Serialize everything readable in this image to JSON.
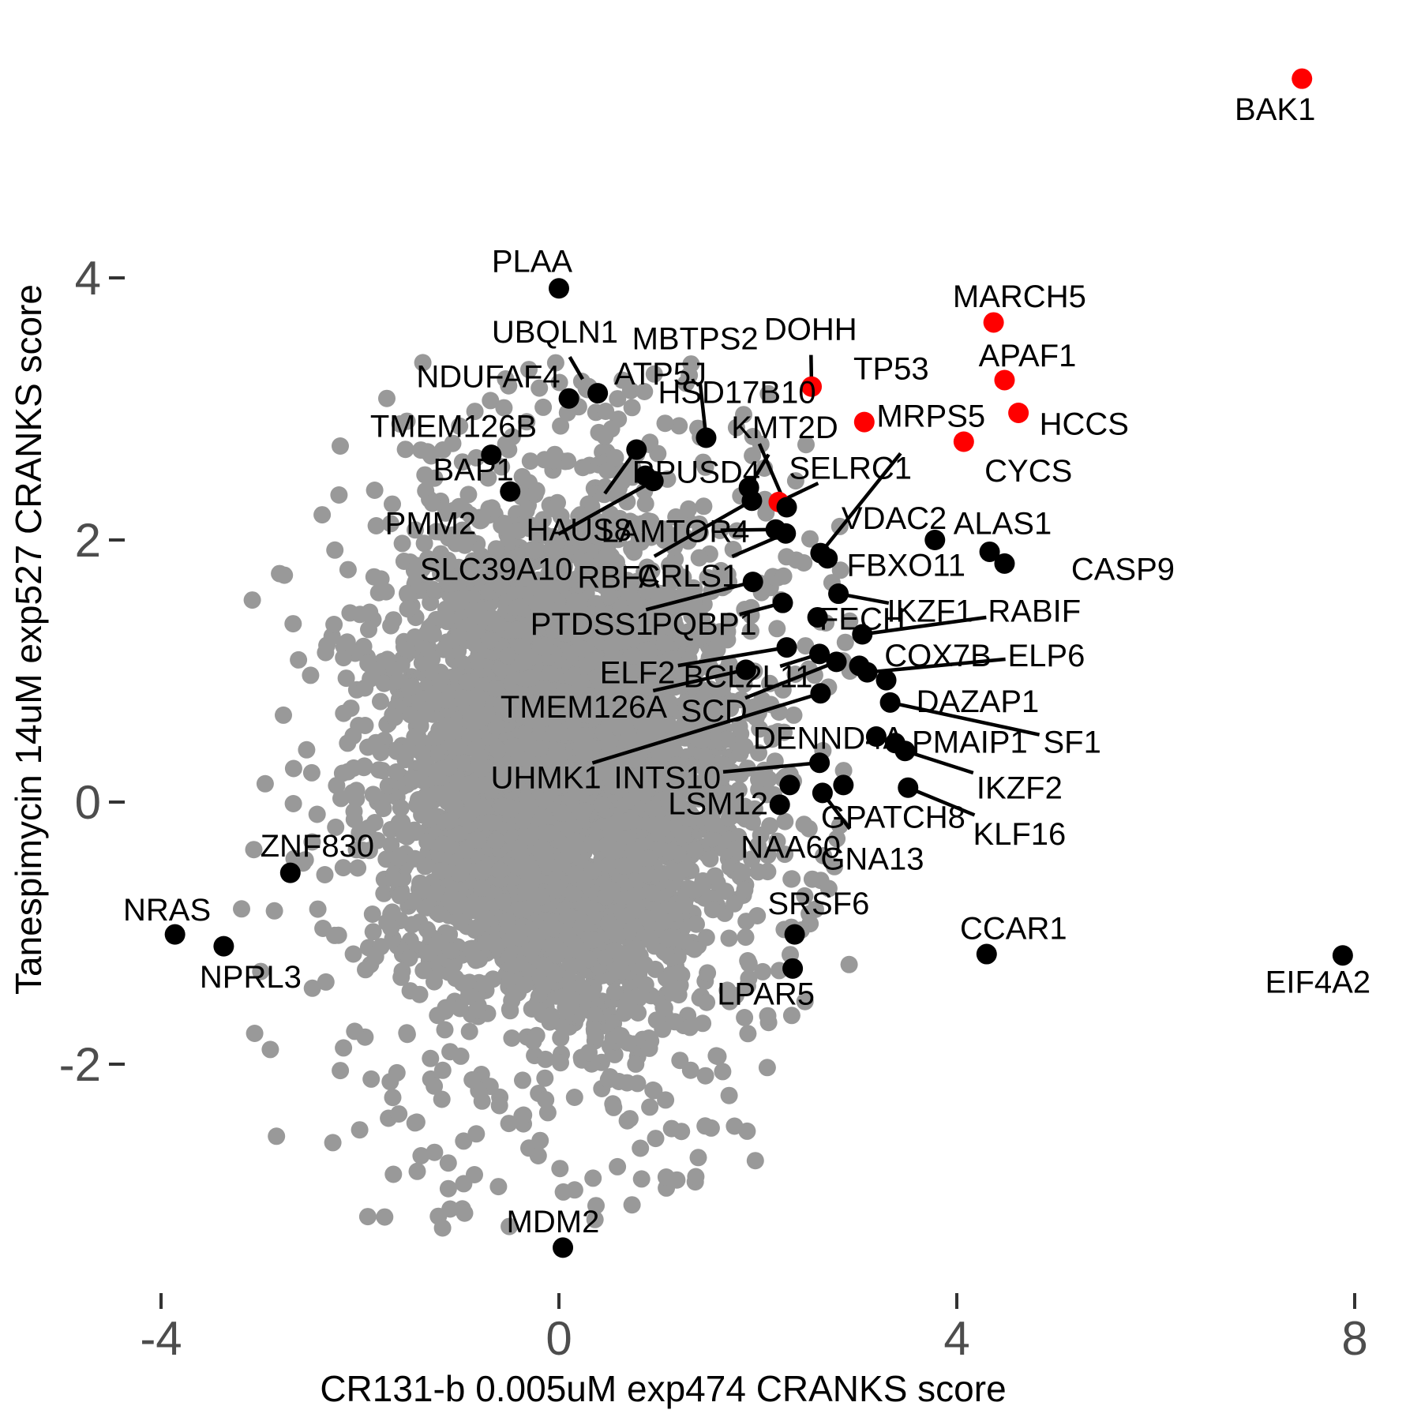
{
  "chart_data": {
    "type": "scatter",
    "title": "",
    "xlabel": "CR131-b 0.005uM exp474 CRANKS score",
    "ylabel": "Tanespimycin 14uM exp527 CRANKS score",
    "x_ticks": [
      -4,
      0,
      4,
      8
    ],
    "y_ticks": [
      -2,
      0,
      2,
      4
    ],
    "xlim": [
      -4.4,
      8.7
    ],
    "ylim": [
      -3.9,
      5.8
    ],
    "grid": "off",
    "legend": "none",
    "colors": {
      "background_point": "#999999",
      "labeled_point": "#000000",
      "highlight_point": "#ff0000",
      "axis_text": "#4d4d4d",
      "axis_tick": "#333333"
    },
    "background_cloud": {
      "seed": 1337,
      "core": {
        "count": 3400,
        "cx": 0.05,
        "cy": 0.35,
        "sdx": 0.85,
        "sdy": 0.95
      },
      "halo": {
        "count": 950,
        "cx": 0.0,
        "cy": 0.1,
        "sdx": 1.3,
        "sdy": 1.5
      },
      "bounds": {
        "xmin": -3.2,
        "xmax": 3.05,
        "ymin": -3.3,
        "ymax": 3.5
      },
      "extra_points": [
        [
          -2.86,
          -0.83
        ],
        [
          -1.17,
          -3.25
        ],
        [
          -2.84,
          -2.55
        ]
      ]
    },
    "labeled_points": [
      {
        "gene": "BAK1",
        "x": 7.47,
        "y": 5.52,
        "color": "red",
        "lx": 7.2,
        "ly": 5.29,
        "leader": false
      },
      {
        "gene": "MARCH5",
        "x": 4.37,
        "y": 3.66,
        "color": "red",
        "lx": 4.63,
        "ly": 3.86,
        "leader": false
      },
      {
        "gene": "APAF1",
        "x": 4.48,
        "y": 3.22,
        "color": "red",
        "lx": 4.71,
        "ly": 3.41,
        "leader": false
      },
      {
        "gene": "HCCS",
        "x": 4.62,
        "y": 2.97,
        "color": "red",
        "lx": 5.28,
        "ly": 2.89,
        "leader": false
      },
      {
        "gene": "DOHH",
        "x": 2.54,
        "y": 3.17,
        "color": "red",
        "lx": 2.53,
        "ly": 3.61,
        "leader": true
      },
      {
        "gene": "TP53",
        "x": 3.07,
        "y": 2.9,
        "color": "red",
        "lx": 3.34,
        "ly": 3.31,
        "leader": false
      },
      {
        "gene": "CYCS",
        "x": 4.07,
        "y": 2.75,
        "color": "red",
        "lx": 4.72,
        "ly": 2.53,
        "leader": false
      },
      {
        "gene": "SELRC1",
        "x": 2.21,
        "y": 2.29,
        "color": "red",
        "lx": 2.93,
        "ly": 2.55,
        "leader": true
      },
      {
        "gene": "PLAA",
        "x": 0.0,
        "y": 3.92,
        "color": "black",
        "lx": -0.27,
        "ly": 4.13,
        "leader": false
      },
      {
        "gene": "UBQLN1",
        "x": 0.29,
        "y": 3.16,
        "color": "gray",
        "lx": -0.04,
        "ly": 3.59,
        "leader": true
      },
      {
        "gene": "MBTPS2",
        "x": 1.48,
        "y": 2.78,
        "color": "black",
        "lx": 1.37,
        "ly": 3.54,
        "leader": true
      },
      {
        "gene": "NDUFAF4",
        "x": 0.1,
        "y": 3.08,
        "color": "black",
        "lx": -0.71,
        "ly": 3.25,
        "leader": false
      },
      {
        "gene": "ATP5J",
        "x": 0.39,
        "y": 3.12,
        "color": "black",
        "lx": 1.02,
        "ly": 3.27,
        "leader": false
      },
      {
        "gene": "HSD17B10",
        "x": 2.29,
        "y": 2.25,
        "color": "black",
        "lx": 1.79,
        "ly": 3.13,
        "leader": true
      },
      {
        "gene": "KMT2D",
        "x": 1.91,
        "y": 2.4,
        "color": "black",
        "lx": 2.27,
        "ly": 2.86,
        "leader": true
      },
      {
        "gene": "TMEM126B",
        "x": -0.68,
        "y": 2.65,
        "color": "black",
        "lx": -1.06,
        "ly": 2.87,
        "leader": false
      },
      {
        "gene": "BAP1",
        "x": -0.49,
        "y": 2.37,
        "color": "black",
        "lx": -0.86,
        "ly": 2.54,
        "leader": false
      },
      {
        "gene": "PMM2",
        "x": -0.79,
        "y": 2.16,
        "color": "gray",
        "lx": -1.29,
        "ly": 2.13,
        "leader": false
      },
      {
        "gene": "HAUS8",
        "x": 0.78,
        "y": 2.69,
        "color": "black",
        "lx": 0.2,
        "ly": 2.08,
        "leader": true
      },
      {
        "gene": "SLC39A10",
        "x": 0.95,
        "y": 2.45,
        "color": "black",
        "lx": -0.63,
        "ly": 1.78,
        "leader": true
      },
      {
        "gene": "RPUSD4",
        "x": 0.87,
        "y": 2.49,
        "color": "black",
        "lx": 1.38,
        "ly": 2.52,
        "leader": false
      },
      {
        "gene": "LAMTOR4",
        "x": 2.18,
        "y": 2.08,
        "color": "black",
        "lx": 1.17,
        "ly": 2.07,
        "leader": true
      },
      {
        "gene": "RBFA",
        "x": 1.94,
        "y": 2.3,
        "color": "black",
        "lx": 0.6,
        "ly": 1.72,
        "leader": true
      },
      {
        "gene": "CRLS1",
        "x": 2.28,
        "y": 2.05,
        "color": "black",
        "lx": 1.3,
        "ly": 1.73,
        "leader": true
      },
      {
        "gene": "MRPS5",
        "x": 2.63,
        "y": 1.9,
        "color": "black",
        "lx": 3.74,
        "ly": 2.95,
        "leader": true
      },
      {
        "gene": "VDAC2",
        "x": 3.78,
        "y": 2.0,
        "color": "black",
        "lx": 3.37,
        "ly": 2.17,
        "leader": false
      },
      {
        "gene": "FBXO11",
        "x": 2.7,
        "y": 1.86,
        "color": "black",
        "lx": 3.49,
        "ly": 1.81,
        "leader": false
      },
      {
        "gene": "ALAS1",
        "x": 4.33,
        "y": 1.91,
        "color": "black",
        "lx": 4.46,
        "ly": 2.13,
        "leader": false
      },
      {
        "gene": "CASP9",
        "x": 4.48,
        "y": 1.82,
        "color": "black",
        "lx": 5.67,
        "ly": 1.78,
        "leader": false
      },
      {
        "gene": "PTDSS1",
        "x": 1.95,
        "y": 1.68,
        "color": "black",
        "lx": 0.33,
        "ly": 1.36,
        "leader": true
      },
      {
        "gene": "PQBP1",
        "x": 2.25,
        "y": 1.52,
        "color": "black",
        "lx": 1.46,
        "ly": 1.36,
        "leader": true
      },
      {
        "gene": "FECH",
        "x": 2.6,
        "y": 1.41,
        "color": "black",
        "lx": 3.05,
        "ly": 1.4,
        "leader": false
      },
      {
        "gene": "IKZF1",
        "x": 2.81,
        "y": 1.59,
        "color": "black",
        "lx": 3.73,
        "ly": 1.46,
        "leader": true
      },
      {
        "gene": "RABIF",
        "x": 3.05,
        "y": 1.28,
        "color": "black",
        "lx": 4.78,
        "ly": 1.46,
        "leader": true
      },
      {
        "gene": "COX7B",
        "x": 3.02,
        "y": 1.04,
        "color": "black",
        "lx": 3.81,
        "ly": 1.12,
        "leader": false
      },
      {
        "gene": "ELP6",
        "x": 3.1,
        "y": 0.99,
        "color": "black",
        "lx": 4.9,
        "ly": 1.12,
        "leader": true
      },
      {
        "gene": "ELF2",
        "x": 2.29,
        "y": 1.18,
        "color": "black",
        "lx": 0.79,
        "ly": 0.99,
        "leader": true
      },
      {
        "gene": "BCL2L11",
        "x": 2.62,
        "y": 1.13,
        "color": "black",
        "lx": 1.9,
        "ly": 0.96,
        "leader": true
      },
      {
        "gene": "TMEM126A",
        "x": 1.88,
        "y": 1.01,
        "color": "black",
        "lx": 0.25,
        "ly": 0.73,
        "leader": true
      },
      {
        "gene": "SCD",
        "x": 2.79,
        "y": 1.07,
        "color": "black",
        "lx": 1.56,
        "ly": 0.7,
        "leader": true
      },
      {
        "gene": "DAZAP1",
        "x": 3.29,
        "y": 0.93,
        "color": "black",
        "lx": 4.21,
        "ly": 0.77,
        "leader": false
      },
      {
        "gene": "DENND4A",
        "x": 3.19,
        "y": 0.5,
        "color": "black",
        "lx": 2.71,
        "ly": 0.49,
        "leader": false
      },
      {
        "gene": "PMAIP1",
        "x": 3.38,
        "y": 0.45,
        "color": "black",
        "lx": 4.13,
        "ly": 0.46,
        "leader": false
      },
      {
        "gene": "SF1",
        "x": 3.33,
        "y": 0.76,
        "color": "black",
        "lx": 5.16,
        "ly": 0.46,
        "leader": true
      },
      {
        "gene": "UHMK1",
        "x": 2.63,
        "y": 0.83,
        "color": "black",
        "lx": -0.13,
        "ly": 0.19,
        "leader": true
      },
      {
        "gene": "INTS10",
        "x": 2.62,
        "y": 0.3,
        "color": "black",
        "lx": 1.09,
        "ly": 0.19,
        "leader": true
      },
      {
        "gene": "IKZF2",
        "x": 3.48,
        "y": 0.39,
        "color": "black",
        "lx": 4.63,
        "ly": 0.11,
        "leader": true
      },
      {
        "gene": "LSM12",
        "x": 2.22,
        "y": -0.02,
        "color": "black",
        "lx": 1.6,
        "ly": -0.01,
        "leader": false
      },
      {
        "gene": "GPATCH8",
        "x": 2.86,
        "y": 0.13,
        "color": "black",
        "lx": 3.36,
        "ly": -0.11,
        "leader": false
      },
      {
        "gene": "KLF16",
        "x": 3.51,
        "y": 0.11,
        "color": "black",
        "lx": 4.63,
        "ly": -0.24,
        "leader": true
      },
      {
        "gene": "NAA60",
        "x": 2.32,
        "y": 0.13,
        "color": "black",
        "lx": 2.33,
        "ly": -0.34,
        "leader": false
      },
      {
        "gene": "GNA13",
        "x": 2.65,
        "y": 0.07,
        "color": "black",
        "lx": 3.15,
        "ly": -0.43,
        "leader": true
      },
      {
        "gene": "ZNF830",
        "x": -2.7,
        "y": -0.54,
        "color": "black",
        "lx": -2.43,
        "ly": -0.33,
        "leader": false
      },
      {
        "gene": "NRAS",
        "x": -3.86,
        "y": -1.01,
        "color": "black",
        "lx": -3.94,
        "ly": -0.82,
        "leader": false
      },
      {
        "gene": "NPRL3",
        "x": -3.37,
        "y": -1.1,
        "color": "black",
        "lx": -3.1,
        "ly": -1.33,
        "leader": false
      },
      {
        "gene": "SRSF6",
        "x": 2.37,
        "y": -1.01,
        "color": "black",
        "lx": 2.61,
        "ly": -0.77,
        "leader": false
      },
      {
        "gene": "CCAR1",
        "x": 4.3,
        "y": -1.16,
        "color": "black",
        "lx": 4.57,
        "ly": -0.96,
        "leader": false
      },
      {
        "gene": "LPAR5",
        "x": 2.35,
        "y": -1.27,
        "color": "black",
        "lx": 2.08,
        "ly": -1.46,
        "leader": false
      },
      {
        "gene": "EIF4A2",
        "x": 7.88,
        "y": -1.17,
        "color": "black",
        "lx": 7.63,
        "ly": -1.37,
        "leader": false
      },
      {
        "gene": "MDM2",
        "x": 0.04,
        "y": -3.4,
        "color": "black",
        "lx": -0.06,
        "ly": -3.2,
        "leader": false
      }
    ]
  }
}
